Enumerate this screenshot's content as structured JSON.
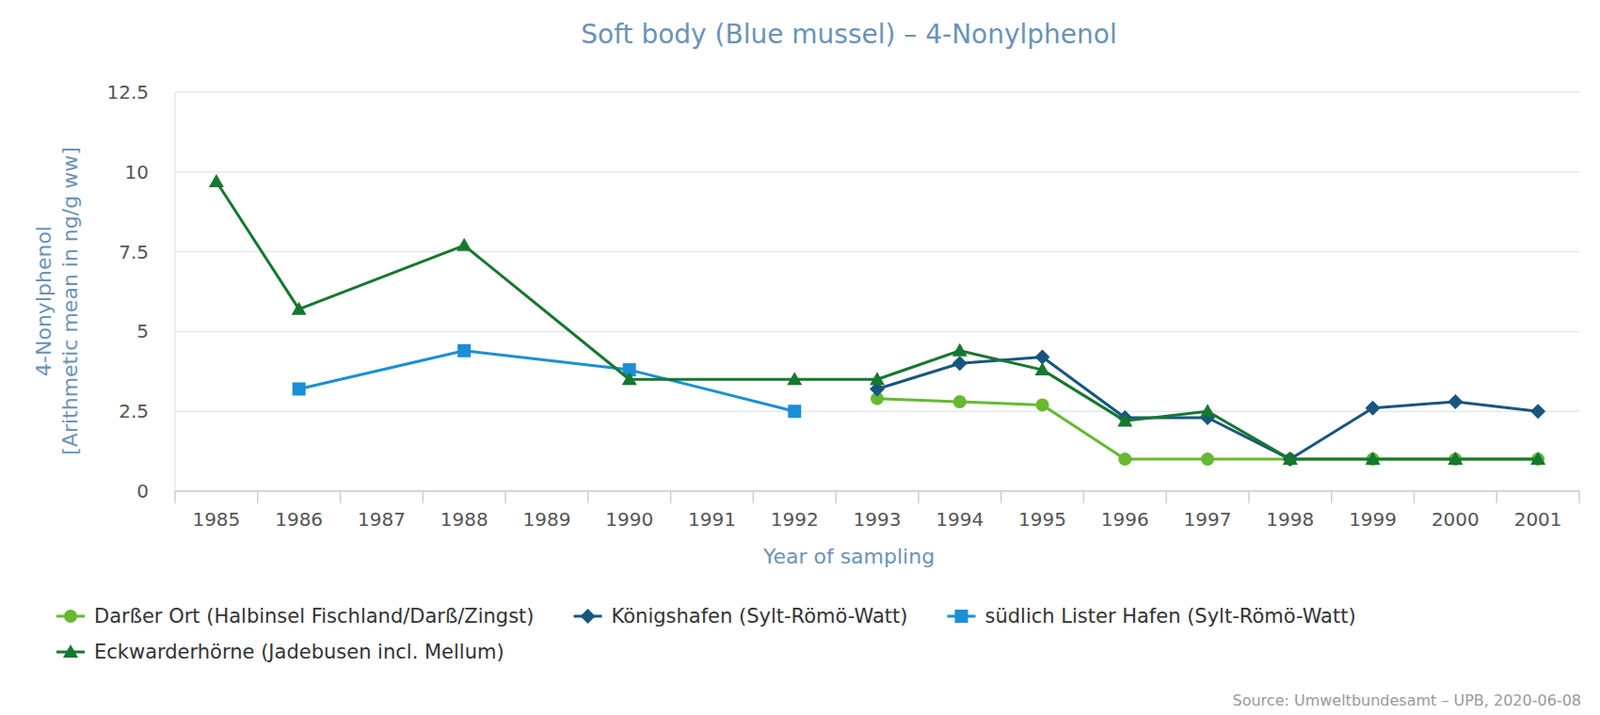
{
  "chart_data": {
    "type": "line",
    "title": "Soft body (Blue mussel) – 4-Nonylphenol",
    "x_label": "Year of sampling",
    "y_label": [
      "4-Nonylphenol",
      "[Arithmetic mean in ng/g ww]"
    ],
    "source": "Source: Umweltbundesamt – UPB, 2020-06-08",
    "categories": [
      "1985",
      "1986",
      "1987",
      "1988",
      "1989",
      "1990",
      "1991",
      "1992",
      "1993",
      "1994",
      "1995",
      "1996",
      "1997",
      "1998",
      "1999",
      "2000",
      "2001"
    ],
    "ylim": [
      0,
      12.5
    ],
    "yticks": [
      0,
      2.5,
      5,
      7.5,
      10,
      12.5
    ],
    "grid": true,
    "legend": "bottom",
    "series": [
      {
        "name": "Darßer Ort (Halbinsel Fischland/Darß/Zingst)",
        "color": "#66b931",
        "marker": "circle",
        "values": [
          null,
          null,
          null,
          null,
          null,
          null,
          null,
          null,
          2.9,
          2.8,
          2.7,
          1,
          1,
          1,
          1,
          1,
          1
        ]
      },
      {
        "name": "Königshafen (Sylt-Römö-Watt)",
        "color": "#17567e",
        "marker": "diamond",
        "values": [
          null,
          null,
          null,
          null,
          null,
          null,
          null,
          null,
          3.2,
          4.0,
          4.2,
          2.3,
          2.3,
          1.0,
          2.6,
          2.8,
          2.5
        ]
      },
      {
        "name": "südlich Lister Hafen (Sylt-Römö-Watt)",
        "color": "#1a8fd6",
        "marker": "square",
        "values": [
          null,
          3.2,
          null,
          4.4,
          null,
          3.8,
          null,
          2.5,
          null,
          null,
          null,
          null,
          null,
          null,
          null,
          null,
          null
        ]
      },
      {
        "name": "Eckwarderhörne (Jadebusen incl. Mellum)",
        "color": "#16772f",
        "marker": "triangle",
        "values": [
          9.7,
          5.7,
          null,
          7.7,
          null,
          3.5,
          null,
          3.5,
          3.5,
          4.4,
          3.8,
          2.2,
          2.5,
          1,
          1,
          1,
          1
        ]
      }
    ]
  }
}
